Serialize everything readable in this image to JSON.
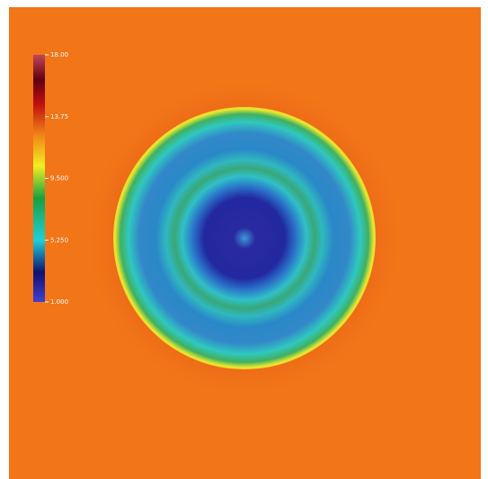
{
  "chart_data": {
    "type": "colorbar",
    "ylim": [
      1,
      18
    ],
    "yticks": [
      {
        "value": 1,
        "label": "1.000"
      },
      {
        "value": 5.25,
        "label": "5.250"
      },
      {
        "value": 9.5,
        "label": "9.500"
      },
      {
        "value": 13.75,
        "label": "13.75"
      },
      {
        "value": 18,
        "label": "18.00"
      }
    ]
  }
}
